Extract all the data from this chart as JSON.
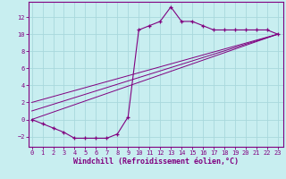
{
  "xlabel": "Windchill (Refroidissement éolien,°C)",
  "bg_color": "#c8eef0",
  "grid_color": "#a8d8dc",
  "line_color": "#800080",
  "x_data": [
    0,
    1,
    2,
    3,
    4,
    5,
    6,
    7,
    8,
    9,
    10,
    11,
    12,
    13,
    14,
    15,
    16,
    17,
    18,
    19,
    20,
    21,
    22,
    23
  ],
  "y_data": [
    0,
    -0.5,
    -1,
    -1.5,
    -2.2,
    -2.2,
    -2.2,
    -2.2,
    -1.7,
    0.3,
    10.5,
    11,
    11.5,
    13.2,
    11.5,
    11.5,
    11,
    10.5,
    10.5,
    10.5,
    10.5,
    10.5,
    10.5,
    10
  ],
  "reg_line1_x": [
    0,
    23
  ],
  "reg_line1_y": [
    0,
    10
  ],
  "reg_line2_x": [
    0,
    23
  ],
  "reg_line2_y": [
    1.0,
    10
  ],
  "reg_line3_x": [
    0,
    23
  ],
  "reg_line3_y": [
    2.0,
    10
  ],
  "xlim": [
    -0.3,
    23.5
  ],
  "ylim": [
    -3.2,
    13.8
  ],
  "yticks": [
    -2,
    0,
    2,
    4,
    6,
    8,
    10,
    12
  ],
  "xticks": [
    0,
    1,
    2,
    3,
    4,
    5,
    6,
    7,
    8,
    9,
    10,
    11,
    12,
    13,
    14,
    15,
    16,
    17,
    18,
    19,
    20,
    21,
    22,
    23
  ],
  "tick_fontsize": 5.0,
  "xlabel_fontsize": 6.0
}
